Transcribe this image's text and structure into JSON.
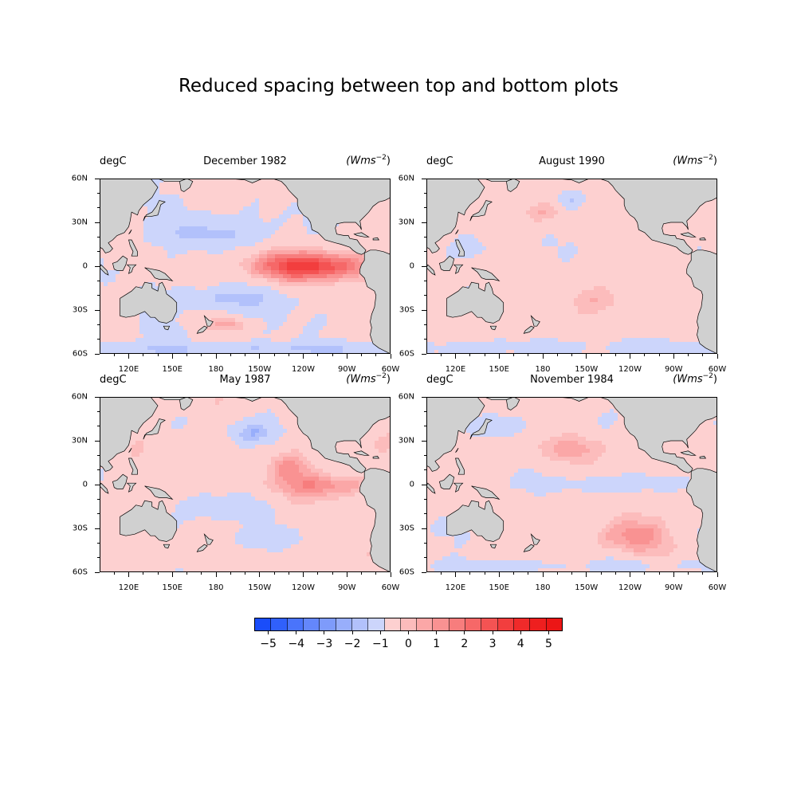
{
  "figure": {
    "title": "Reduced spacing between top and bottom plots"
  },
  "panels": [
    {
      "left_label": "degC",
      "center_title": "December 1982",
      "right_label_base": "(Wms",
      "right_label_exp": "−2",
      "right_label_close": ")",
      "anomaly_pattern": "el-nino-strong"
    },
    {
      "left_label": "degC",
      "center_title": "August 1990",
      "right_label_base": "(Wms",
      "right_label_exp": "−2",
      "right_label_close": ")",
      "anomaly_pattern": "weak-warm"
    },
    {
      "left_label": "degC",
      "center_title": "May 1987",
      "right_label_base": "(Wms",
      "right_label_exp": "−2",
      "right_label_close": ")",
      "anomaly_pattern": "moderate-warm"
    },
    {
      "left_label": "degC",
      "center_title": "November 1984",
      "right_label_base": "(Wms",
      "right_label_exp": "−2",
      "right_label_close": ")",
      "anomaly_pattern": "weak-cool-equator"
    }
  ],
  "axes": {
    "lon_ticks": [
      "120E",
      "150E",
      "180",
      "150W",
      "120W",
      "90W",
      "60W"
    ],
    "lon_values": [
      120,
      150,
      180,
      210,
      240,
      270,
      300
    ],
    "lat_ticks": [
      "60N",
      "30N",
      "0",
      "30S",
      "60S"
    ],
    "lat_values": [
      60,
      30,
      0,
      -30,
      -60
    ],
    "lon_range": [
      100,
      300
    ],
    "lat_range": [
      -60,
      60
    ]
  },
  "colorbar": {
    "tick_labels": [
      "−5",
      "−4",
      "−3",
      "−2",
      "−1",
      "0",
      "1",
      "2",
      "3",
      "4",
      "5"
    ],
    "tick_values": [
      -5,
      -4,
      -3,
      -2,
      -1,
      0,
      1,
      2,
      3,
      4,
      5
    ],
    "range": [
      -5.5,
      5.5
    ],
    "colors": [
      "#1a4dfa",
      "#3060fb",
      "#4a74fb",
      "#6487fb",
      "#7e9bfb",
      "#98aefb",
      "#b2c1fb",
      "#ccd5fb",
      "#ffffff",
      "#fdd0d0",
      "#fcbcbc",
      "#fba7a7",
      "#f99292",
      "#f77d7d",
      "#f66868",
      "#f45353",
      "#f23e3e",
      "#f02a2a",
      "#ee1f1f",
      "#ec1616"
    ]
  },
  "colors": {
    "land": "#d0d0d0",
    "coast": "#000000",
    "warm_light": "#fdd0d0",
    "cool_light": "#ccd5fb"
  }
}
